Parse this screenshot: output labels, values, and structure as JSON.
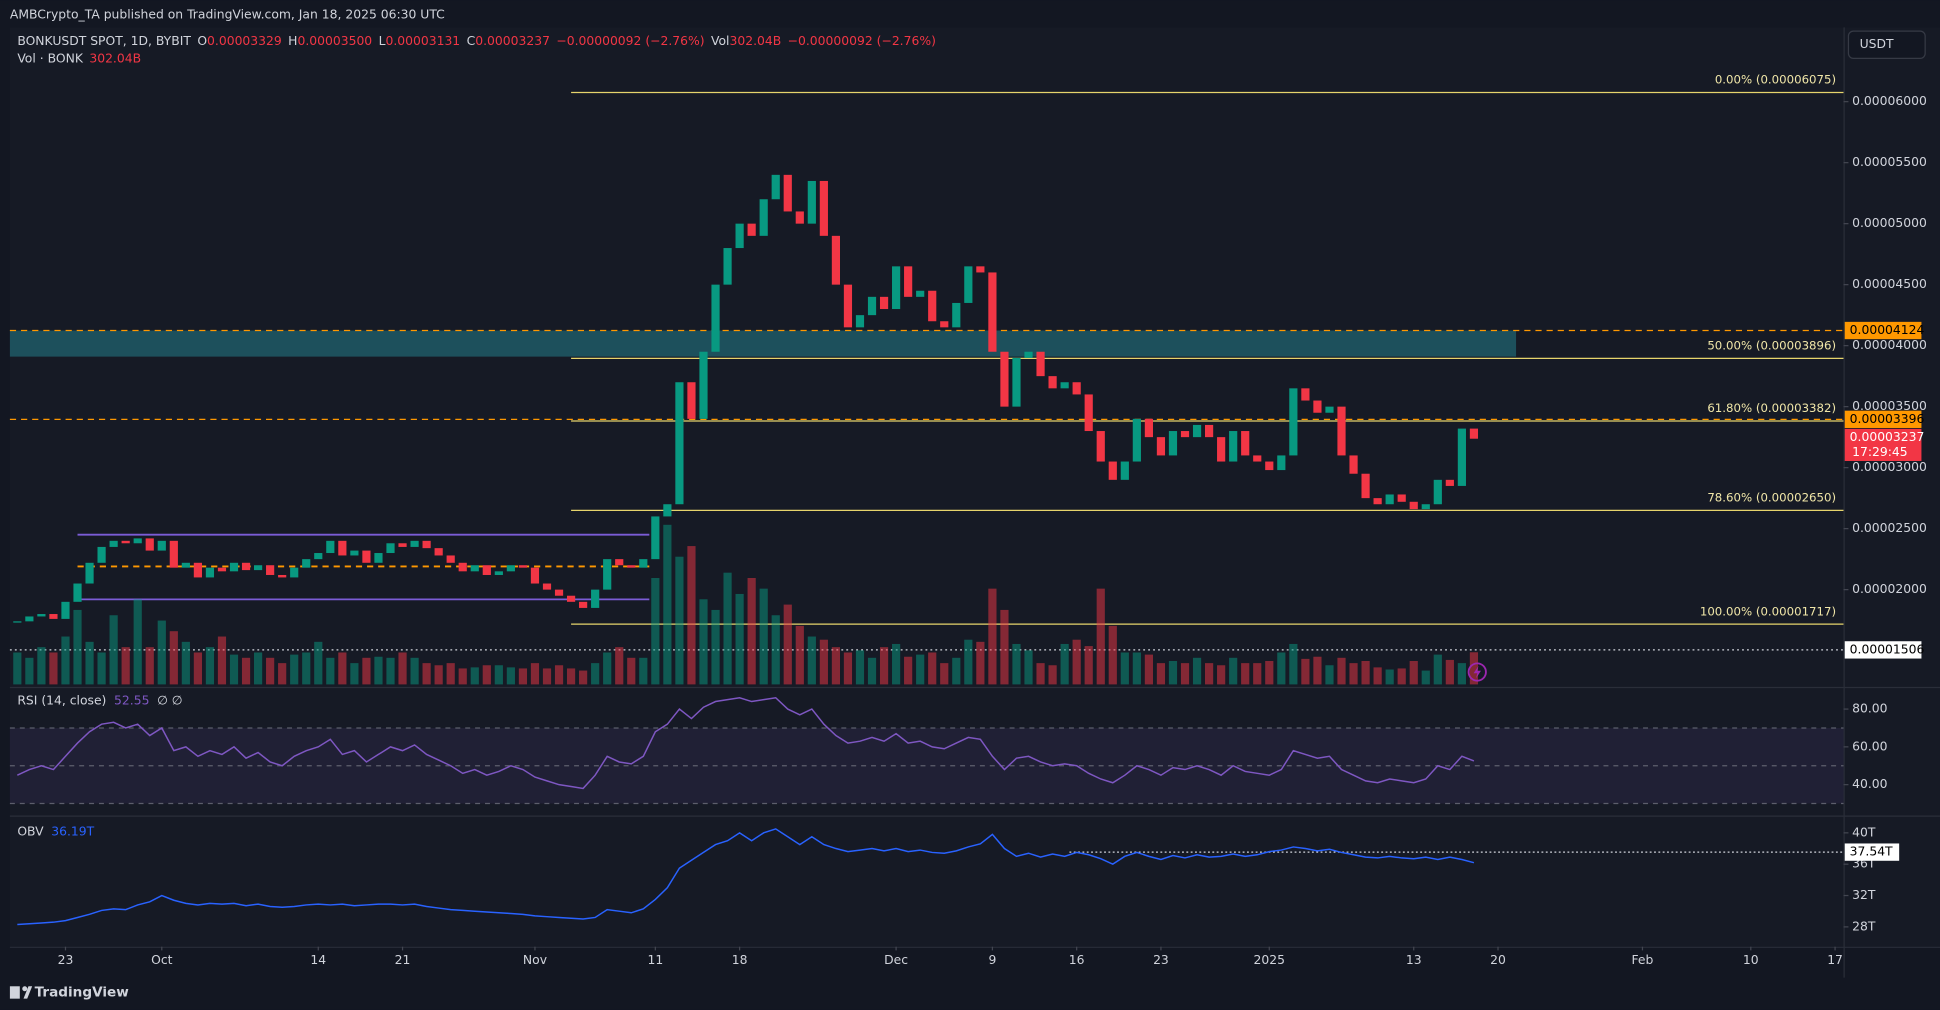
{
  "header": {
    "published": "AMBCrypto_TA published on TradingView.com, Jan 18, 2025 06:30 UTC",
    "symbol": "BONKUSDT SPOT, 1D, BYBIT",
    "ohlc": [
      {
        "k": "O",
        "v": "0.00003329"
      },
      {
        "k": "H",
        "v": "0.00003500"
      },
      {
        "k": "L",
        "v": "0.00003131"
      },
      {
        "k": "C",
        "v": "0.00003237"
      }
    ],
    "change": "−0.00000092 (−2.76%)",
    "vol_label": "Vol",
    "vol": "302.04B",
    "vol_change": "−0.00000092 (−2.76%)"
  },
  "currency": "USDT",
  "footer": "TradingView",
  "chart_data": [
    {
      "type": "candlestick",
      "up_color": "#089981",
      "down_color": "#f23645",
      "volume_label": "Vol · BONK",
      "volume_value_label": "302.04B",
      "xlim": [
        -0.617,
        151.7
      ],
      "xticks": [
        {
          "value": 4,
          "label": "23"
        },
        {
          "value": 12,
          "label": "Oct"
        },
        {
          "value": 25,
          "label": "14"
        },
        {
          "value": 32,
          "label": "21"
        },
        {
          "value": 43,
          "label": "Nov"
        },
        {
          "value": 53,
          "label": "11"
        },
        {
          "value": 60,
          "label": "18"
        },
        {
          "value": 73,
          "label": "Dec"
        },
        {
          "value": 81,
          "label": "9"
        },
        {
          "value": 88,
          "label": "16"
        },
        {
          "value": 95,
          "label": "23"
        },
        {
          "value": 104,
          "label": "2025"
        },
        {
          "value": 116,
          "label": "13"
        },
        {
          "value": 123,
          "label": "20"
        },
        {
          "value": 135,
          "label": "Feb"
        },
        {
          "value": 144,
          "label": "10"
        },
        {
          "value": 151,
          "label": "17"
        }
      ],
      "ylim": [
        1.2231e-05,
        6.6085e-05
      ],
      "yticks": [
        {
          "value": 6e-05,
          "label": "0.00006000"
        },
        {
          "value": 5.5e-05,
          "label": "0.00005500"
        },
        {
          "value": 5e-05,
          "label": "0.00005000"
        },
        {
          "value": 4.5e-05,
          "label": "0.00004500"
        },
        {
          "value": 4e-05,
          "label": "0.00004000"
        },
        {
          "value": 3.5e-05,
          "label": "0.00003500"
        },
        {
          "value": 3e-05,
          "label": "0.00003000"
        },
        {
          "value": 2.5e-05,
          "label": "0.00002500"
        },
        {
          "value": 2e-05,
          "label": "0.00002000"
        }
      ],
      "close": [
        1.74e-05,
        1.78e-05,
        1.8e-05,
        1.76e-05,
        1.9e-05,
        2.05e-05,
        2.22e-05,
        2.35e-05,
        2.4e-05,
        2.38e-05,
        2.42e-05,
        2.32e-05,
        2.4e-05,
        2.18e-05,
        2.22e-05,
        2.1e-05,
        2.18e-05,
        2.15e-05,
        2.22e-05,
        2.16e-05,
        2.2e-05,
        2.12e-05,
        2.1e-05,
        2.18e-05,
        2.25e-05,
        2.3e-05,
        2.4e-05,
        2.28e-05,
        2.32e-05,
        2.22e-05,
        2.3e-05,
        2.38e-05,
        2.35e-05,
        2.4e-05,
        2.34e-05,
        2.28e-05,
        2.22e-05,
        2.15e-05,
        2.2e-05,
        2.12e-05,
        2.15e-05,
        2.2e-05,
        2.18e-05,
        2.05e-05,
        2e-05,
        1.95e-05,
        1.9e-05,
        1.85e-05,
        2e-05,
        2.25e-05,
        2.2e-05,
        2.18e-05,
        2.25e-05,
        2.6e-05,
        2.7e-05,
        3.7e-05,
        3.4e-05,
        3.95e-05,
        4.5e-05,
        4.8e-05,
        5e-05,
        4.9e-05,
        5.2e-05,
        5.4e-05,
        5.1e-05,
        5e-05,
        5.35e-05,
        4.9e-05,
        4.5e-05,
        4.15e-05,
        4.25e-05,
        4.4e-05,
        4.3e-05,
        4.65e-05,
        4.4e-05,
        4.45e-05,
        4.2e-05,
        4.15e-05,
        4.35e-05,
        4.65e-05,
        4.6e-05,
        3.95e-05,
        3.5e-05,
        3.9e-05,
        3.95e-05,
        3.75e-05,
        3.65e-05,
        3.7e-05,
        3.6e-05,
        3.3e-05,
        3.05e-05,
        2.9e-05,
        3.05e-05,
        3.4e-05,
        3.25e-05,
        3.1e-05,
        3.3e-05,
        3.25e-05,
        3.35e-05,
        3.25e-05,
        3.05e-05,
        3.3e-05,
        3.1e-05,
        3.05e-05,
        2.98e-05,
        3.1e-05,
        3.65e-05,
        3.55e-05,
        3.45e-05,
        3.5e-05,
        3.1e-05,
        2.95e-05,
        2.75e-05,
        2.7e-05,
        2.78e-05,
        2.72e-05,
        2.66e-05,
        2.7e-05,
        2.9e-05,
        2.85e-05,
        3.32e-05,
        3.237e-05
      ],
      "volume": [
        300,
        250,
        350,
        300,
        450,
        700,
        400,
        300,
        650,
        350,
        800,
        350,
        600,
        500,
        400,
        300,
        350,
        450,
        280,
        250,
        300,
        250,
        200,
        280,
        300,
        400,
        250,
        300,
        200,
        250,
        260,
        250,
        300,
        250,
        200,
        180,
        200,
        150,
        160,
        180,
        180,
        160,
        150,
        200,
        150,
        180,
        150,
        130,
        200,
        300,
        350,
        250,
        250,
        1000,
        1500,
        1200,
        1300,
        800,
        700,
        1050,
        850,
        1000,
        900,
        650,
        750,
        550,
        450,
        420,
        350,
        300,
        320,
        250,
        350,
        380,
        260,
        280,
        300,
        200,
        250,
        420,
        400,
        900,
        700,
        380,
        320,
        200,
        180,
        380,
        420,
        360,
        900,
        550,
        300,
        300,
        280,
        200,
        220,
        200,
        250,
        200,
        180,
        250,
        200,
        200,
        220,
        300,
        380,
        240,
        260,
        180,
        250,
        200,
        220,
        160,
        140,
        150,
        220,
        130,
        280,
        230,
        200,
        302.04
      ],
      "levels": [
        {
          "value": 4.124e-05,
          "color": "#ff9800",
          "style": "dashed"
        },
        {
          "value": 3.396e-05,
          "color": "#ff9800",
          "style": "dashed"
        },
        {
          "value": 1.506e-05,
          "color": "#d1d4dc",
          "style": "dotted"
        }
      ],
      "last_price": {
        "value": 3.237e-05,
        "countdown": "17:29:45",
        "color": "#f23645"
      },
      "zone": {
        "top": 4.124e-05,
        "bottom": 3.91e-05,
        "color": "#1e5b66"
      },
      "range": {
        "upper": 2.45e-05,
        "mid": 2.19e-05,
        "lower": 1.92e-05,
        "color": "#7b5cd6",
        "mid_color": "#ff9800"
      },
      "fib_color": "#e6d46c",
      "fib": [
        {
          "value": 6.075e-05,
          "label": "0.00% (0.00006075)"
        },
        {
          "value": 3.896e-05,
          "label": "50.00% (0.00003896)"
        },
        {
          "value": 3.382e-05,
          "label": "61.80% (0.00003382)"
        },
        {
          "value": 2.65e-05,
          "label": "78.60% (0.00002650)"
        },
        {
          "value": 1.717e-05,
          "label": "100.00% (0.00001717)"
        }
      ]
    },
    {
      "type": "line",
      "title": "RSI (14, close)",
      "na": "∅ ∅",
      "color": "#7e57c2",
      "ylim": [
        24.3,
        91.1
      ],
      "yticks": [
        {
          "value": 80,
          "label": "80.00"
        },
        {
          "value": 60,
          "label": "60.00"
        },
        {
          "value": 40,
          "label": "40.00"
        }
      ],
      "levels": [
        70,
        50,
        30
      ],
      "values": [
        45,
        48,
        50,
        48,
        55,
        62,
        68,
        72,
        73,
        70,
        72,
        66,
        70,
        58,
        60,
        55,
        58,
        56,
        60,
        54,
        57,
        52,
        50,
        55,
        58,
        60,
        64,
        56,
        58,
        52,
        56,
        60,
        58,
        61,
        56,
        53,
        50,
        46,
        48,
        45,
        47,
        50,
        48,
        44,
        42,
        40,
        39,
        38,
        45,
        55,
        52,
        51,
        55,
        68,
        72,
        80,
        75,
        81,
        84,
        85,
        86,
        84,
        85,
        86,
        80,
        77,
        80,
        72,
        66,
        62,
        63,
        65,
        63,
        67,
        62,
        63,
        60,
        59,
        62,
        65,
        64,
        55,
        48,
        54,
        55,
        52,
        50,
        51,
        50,
        46,
        43,
        41,
        45,
        50,
        48,
        45,
        49,
        48,
        50,
        48,
        45,
        50,
        47,
        46,
        45,
        48,
        58,
        56,
        54,
        55,
        48,
        45,
        42,
        41,
        43,
        42,
        41,
        43,
        50,
        48,
        55,
        52.55
      ]
    },
    {
      "type": "line",
      "title": "OBV",
      "current": "36.19T",
      "color": "#2962ff",
      "ylim": [
        25.47,
        42.05
      ],
      "yticks": [
        {
          "value": 40,
          "label": "40T"
        },
        {
          "value": 36,
          "label": "36T"
        },
        {
          "value": 32,
          "label": "32T"
        },
        {
          "value": 28,
          "label": "28T"
        }
      ],
      "marker": {
        "value": 37.54,
        "label": "37.54T"
      },
      "values": [
        28.3,
        28.4,
        28.5,
        28.6,
        28.8,
        29.2,
        29.6,
        30.1,
        30.3,
        30.2,
        30.8,
        31.2,
        32.0,
        31.4,
        31.0,
        30.8,
        31.0,
        30.9,
        31.0,
        30.7,
        30.9,
        30.6,
        30.5,
        30.6,
        30.8,
        30.9,
        30.8,
        30.9,
        30.7,
        30.8,
        30.9,
        30.9,
        30.8,
        30.9,
        30.6,
        30.4,
        30.2,
        30.1,
        30.0,
        29.9,
        29.8,
        29.7,
        29.6,
        29.4,
        29.3,
        29.2,
        29.1,
        29.0,
        29.2,
        30.2,
        30.0,
        29.8,
        30.3,
        31.5,
        33.0,
        35.5,
        36.5,
        37.5,
        38.5,
        39.0,
        40.0,
        39.0,
        40.0,
        40.5,
        39.5,
        38.5,
        39.5,
        38.5,
        38.0,
        37.6,
        37.8,
        38.0,
        37.7,
        38.0,
        37.6,
        37.8,
        37.5,
        37.4,
        37.7,
        38.2,
        38.6,
        39.8,
        38.0,
        37.0,
        37.4,
        36.9,
        37.3,
        37.0,
        37.5,
        37.2,
        36.7,
        36.0,
        37.0,
        37.5,
        37.0,
        36.6,
        37.1,
        36.8,
        37.2,
        36.9,
        37.0,
        37.3,
        37.0,
        37.2,
        37.6,
        37.8,
        38.2,
        38.0,
        37.7,
        37.9,
        37.5,
        37.2,
        36.9,
        36.8,
        37.0,
        36.8,
        36.7,
        36.9,
        36.6,
        36.9,
        36.6,
        36.19
      ]
    }
  ]
}
